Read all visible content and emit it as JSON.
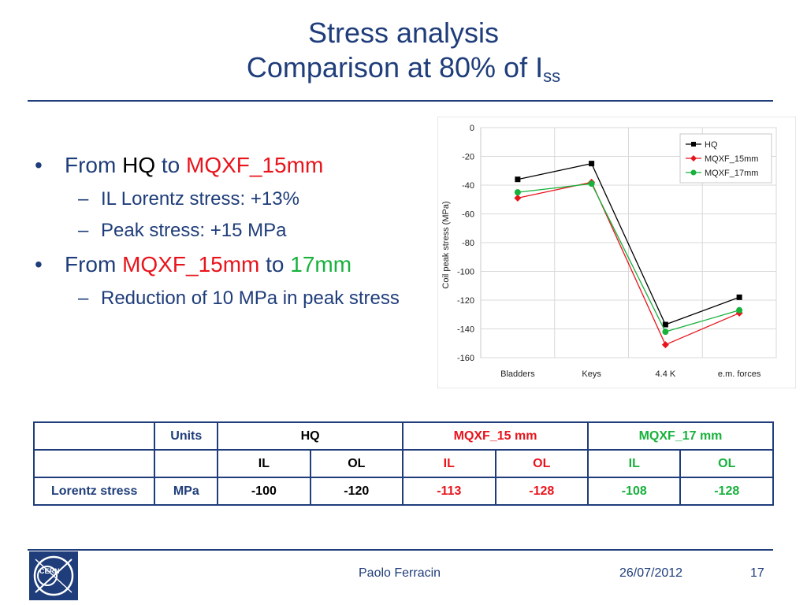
{
  "title": {
    "line1": "Stress analysis",
    "line2_main": "Comparison at 80% of I",
    "line2_sub": "ss"
  },
  "bullets": {
    "b1": {
      "from": "From",
      "a": "HQ",
      "to": "to",
      "b": "MQXF_15mm"
    },
    "b1_subs": [
      "IL Lorentz stress: +13%",
      "Peak stress: +15 MPa"
    ],
    "b2": {
      "from": "From",
      "a": "MQXF_15mm",
      "to": "to",
      "b": "17mm"
    },
    "b2_subs": [
      "Reduction of 10 MPa in peak stress"
    ]
  },
  "chart_data": {
    "type": "line",
    "categories": [
      "Bladders",
      "Keys",
      "4.4 K",
      "e.m. forces"
    ],
    "ylabel": "Coil peak stress (MPa)",
    "xlabel": "",
    "ylim": [
      -160,
      0
    ],
    "yticks": [
      0,
      -20,
      -40,
      -60,
      -80,
      -100,
      -120,
      -140,
      -160
    ],
    "grid": true,
    "legend_position": "top-right",
    "series": [
      {
        "name": "HQ",
        "color": "#000000",
        "marker": "square",
        "values": [
          -36,
          -25,
          -137,
          -118
        ]
      },
      {
        "name": "MQXF_15mm",
        "color": "#e8141c",
        "marker": "diamond",
        "values": [
          -49,
          -38,
          -151,
          -129
        ]
      },
      {
        "name": "MQXF_17mm",
        "color": "#17b13c",
        "marker": "circle",
        "values": [
          -45,
          -39,
          -142,
          -127
        ]
      }
    ]
  },
  "table": {
    "header1": {
      "blank": "",
      "units": "Units",
      "hq": "HQ",
      "mqxf15": "MQXF_15 mm",
      "mqxf17": "MQXF_17 mm"
    },
    "header2": {
      "blank1": "",
      "blank2": "",
      "il1": "IL",
      "ol1": "OL",
      "il2": "IL",
      "ol2": "OL",
      "il3": "IL",
      "ol3": "OL"
    },
    "row": {
      "label": "Lorentz stress",
      "unit": "MPa",
      "hq_il": "-100",
      "hq_ol": "-120",
      "m15_il": "-113",
      "m15_ol": "-128",
      "m17_il": "-108",
      "m17_ol": "-128"
    }
  },
  "footer": {
    "logo_text": "CERN",
    "author": "Paolo Ferracin",
    "date": "26/07/2012",
    "page": "17"
  }
}
